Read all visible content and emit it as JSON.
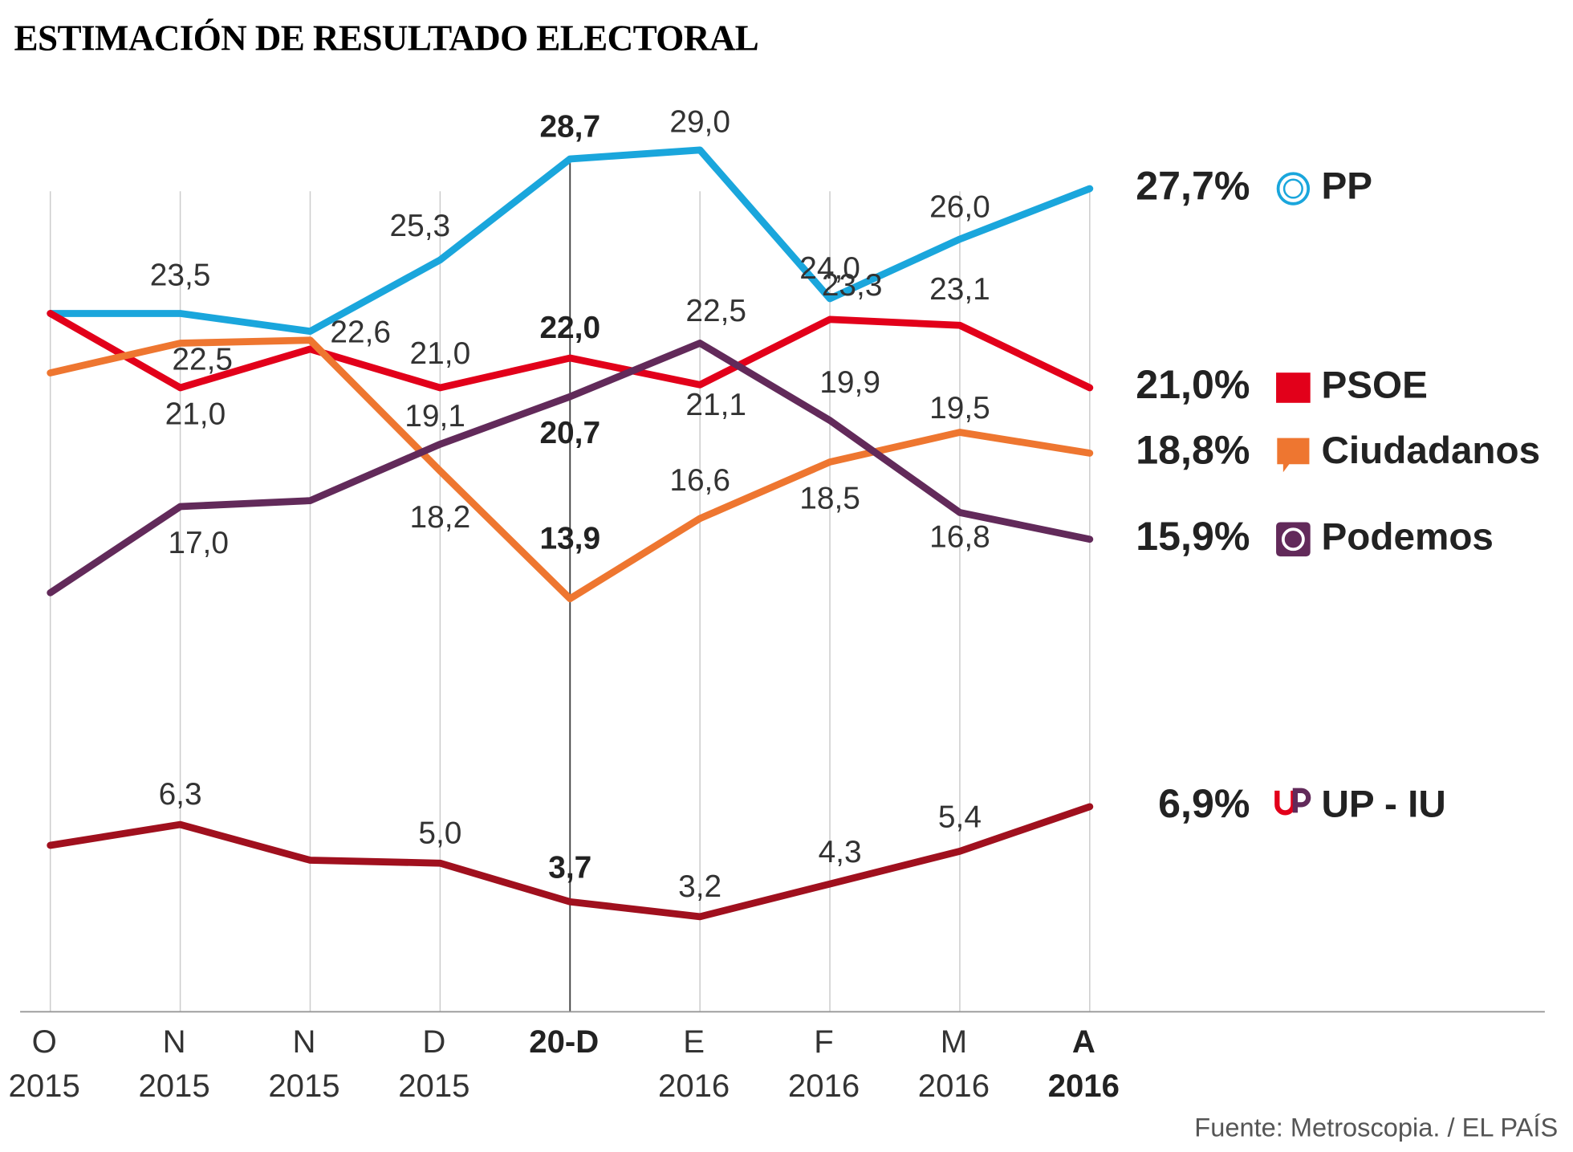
{
  "chart_data": {
    "type": "line",
    "title": "ESTIMACIÓN DE RESULTADO ELECTORAL",
    "source": "Fuente: Metroscopia. / EL PAÍS",
    "categories": [
      "O",
      "N",
      "N",
      "D",
      "20-D",
      "E",
      "F",
      "M",
      "A"
    ],
    "category_years": [
      "2015",
      "2015",
      "2015",
      "2015",
      null,
      "2016",
      "2016",
      "2016",
      "2016"
    ],
    "ylim": [
      0,
      31
    ],
    "series": [
      {
        "name": "PP",
        "color": "#1aa6dc",
        "values": [
          23.5,
          23.5,
          22.9,
          25.3,
          28.7,
          29.0,
          24.0,
          26.0,
          27.7
        ],
        "value_labels": [
          null,
          "23,5",
          null,
          "25,3",
          "28,7",
          "29,0",
          "24,0",
          "26,0",
          "27,7%"
        ]
      },
      {
        "name": "PSOE",
        "color": "#e2001a",
        "values": [
          23.5,
          21.0,
          22.3,
          21.0,
          22.0,
          21.1,
          23.3,
          23.1,
          21.0
        ],
        "value_labels": [
          null,
          "21,0",
          null,
          "21,0",
          "22,0",
          "21,1",
          "23,3",
          "23,1",
          "21,0%"
        ]
      },
      {
        "name": "Ciudadanos",
        "color": "#ee7630",
        "values": [
          21.5,
          22.5,
          22.6,
          18.2,
          13.9,
          16.6,
          18.5,
          19.5,
          18.8
        ],
        "value_labels": [
          null,
          "22,5",
          "22,6",
          "18,2",
          "13,9",
          "16,6",
          "18,5",
          "19,5",
          "18,8%"
        ]
      },
      {
        "name": "Podemos",
        "color": "#622a5a",
        "values": [
          14.1,
          17.0,
          17.2,
          19.1,
          20.7,
          22.5,
          19.9,
          16.8,
          15.9
        ],
        "value_labels": [
          null,
          "17,0",
          null,
          "19,1",
          "20,7",
          "22,5",
          "19,9",
          "16,8",
          "15,9%"
        ]
      },
      {
        "name": "UP - IU",
        "color": "#a0101e",
        "values": [
          5.6,
          6.3,
          5.1,
          5.0,
          3.7,
          3.2,
          4.3,
          5.4,
          6.9
        ],
        "value_labels": [
          null,
          "6,3",
          null,
          "5,0",
          "3,7",
          "3,2",
          "4,3",
          "5,4",
          "6,9%"
        ]
      }
    ]
  }
}
